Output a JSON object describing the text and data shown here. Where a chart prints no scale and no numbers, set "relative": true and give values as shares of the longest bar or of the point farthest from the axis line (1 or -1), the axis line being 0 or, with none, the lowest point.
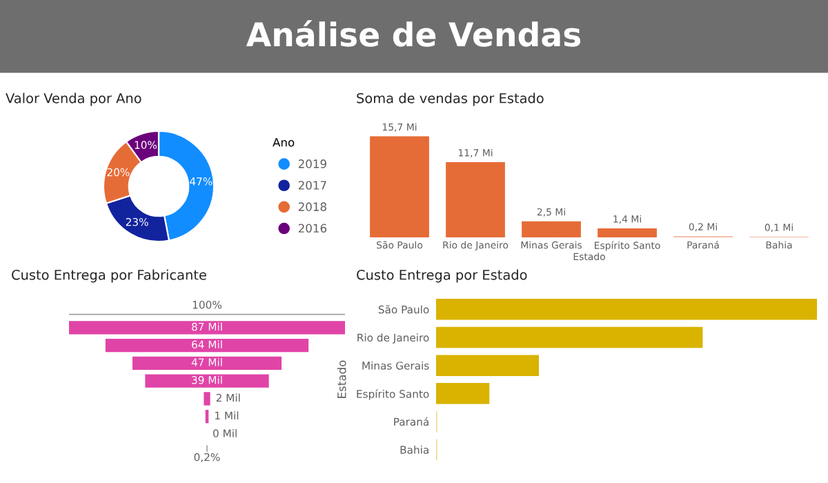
{
  "chart_data": [
    {
      "type": "other",
      "title": "Análise de Vendas"
    },
    {
      "type": "donut",
      "title": "Valor Venda por Ano",
      "categories": [
        "2019",
        "2017",
        "2018",
        "2016"
      ],
      "values": [
        47,
        23,
        20,
        10
      ],
      "colors": [
        "#118dff",
        "#12239e",
        "#e66c37",
        "#6b007b"
      ],
      "value_labels": [
        "47%",
        "23%",
        "20%",
        "10%"
      ],
      "legend": "right",
      "legend_title": "Ano"
    },
    {
      "type": "bar",
      "title": "Soma de vendas por Estado",
      "xlabel": "Estado",
      "categories": [
        "São Paulo",
        "Rio de Janeiro",
        "Minas Gerais",
        "Espírito Santo",
        "Paraná",
        "Bahia"
      ],
      "values": [
        15.7,
        11.7,
        2.5,
        1.4,
        0.2,
        0.1
      ],
      "colors": [
        "#e66c37",
        "#e66c37",
        "#e66c37",
        "#e66c37",
        "#f3b79c",
        "#f3b79c"
      ],
      "value_labels": [
        "15,7 Mi",
        "11,7 Mi",
        "2,5 Mi",
        "1,4 Mi",
        "0,2 Mi",
        "0,1 Mi"
      ]
    },
    {
      "type": "other",
      "title": "Custo Entrega por Fabricante",
      "categories": [
        null,
        null,
        null,
        null,
        null,
        null,
        null
      ],
      "values": [
        87,
        64,
        47,
        39,
        2,
        1,
        0
      ],
      "color": "#e044a7",
      "value_labels": [
        "87 Mil",
        "64 Mil",
        "47 Mil",
        "39 Mil",
        "2 Mil",
        "1 Mil",
        "0 Mil"
      ],
      "annotations": [
        "100%",
        "0,2%"
      ]
    },
    {
      "type": "bar",
      "orientation": "horizontal",
      "relative": true,
      "title": "Custo Entrega por Estado",
      "ylabel": "Estado",
      "categories": [
        "São Paulo",
        "Rio de Janeiro",
        "Minas Gerais",
        "Espírito Santo",
        "Paraná",
        "Bahia"
      ],
      "values": [
        1,
        0.7,
        0.27,
        0.14,
        0.003,
        0.003
      ],
      "colors": [
        "#d9b300",
        "#d9b300",
        "#d9b300",
        "#d9b300",
        "#eedc8a",
        "#eedc8a"
      ]
    }
  ]
}
